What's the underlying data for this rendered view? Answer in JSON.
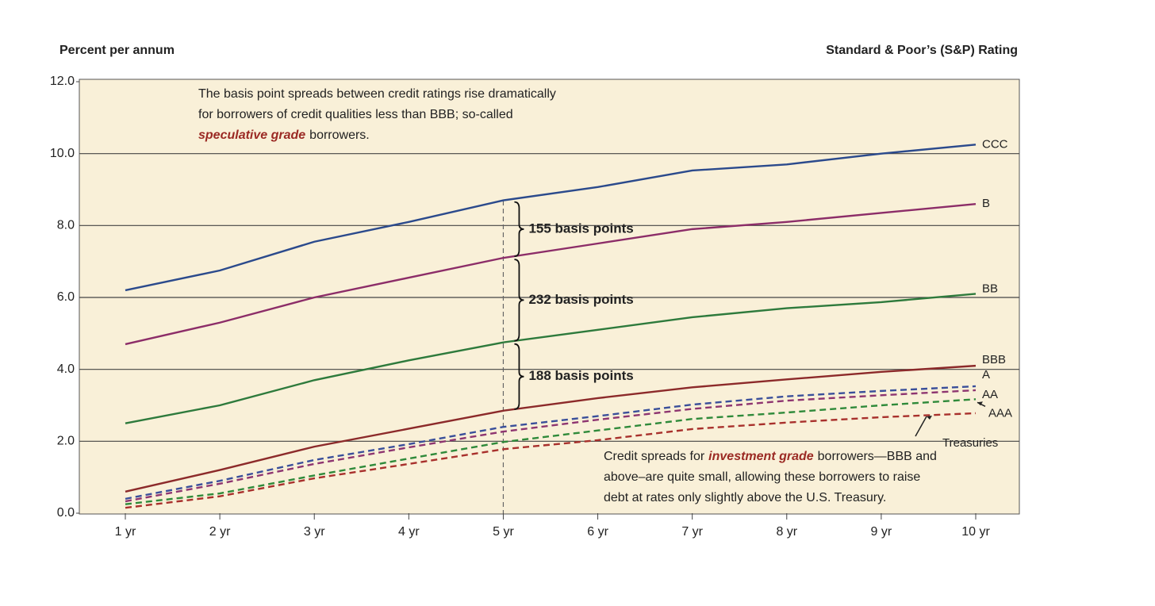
{
  "chart_data": {
    "type": "line",
    "y_label": "Percent per annum",
    "legend_title": "Standard & Poor’s (S&P) Rating",
    "categories": [
      "1 yr",
      "2 yr",
      "3 yr",
      "4 yr",
      "5 yr",
      "6 yr",
      "7 yr",
      "8 yr",
      "9 yr",
      "10 yr"
    ],
    "series": [
      {
        "name": "CCC",
        "color": "#2b4a8c",
        "dashed": false,
        "values": [
          6.2,
          6.75,
          7.55,
          8.1,
          8.7,
          9.07,
          9.53,
          9.7,
          10.0,
          10.25
        ]
      },
      {
        "name": "B",
        "color": "#8c2d68",
        "dashed": false,
        "values": [
          4.7,
          5.3,
          6.0,
          6.55,
          7.1,
          7.5,
          7.9,
          8.1,
          8.35,
          8.6
        ]
      },
      {
        "name": "BB",
        "color": "#2e7a3c",
        "dashed": false,
        "values": [
          2.5,
          3.0,
          3.7,
          4.25,
          4.75,
          5.1,
          5.45,
          5.7,
          5.87,
          6.1
        ]
      },
      {
        "name": "BBB",
        "color": "#8c2a2a",
        "dashed": false,
        "values": [
          0.6,
          1.2,
          1.85,
          2.35,
          2.85,
          3.2,
          3.5,
          3.72,
          3.93,
          4.1
        ]
      },
      {
        "name": "A",
        "color": "#3a4f9a",
        "dashed": true,
        "values": [
          0.4,
          0.9,
          1.48,
          1.92,
          2.4,
          2.7,
          3.02,
          3.25,
          3.4,
          3.53
        ]
      },
      {
        "name": "AA",
        "color": "#8e3570",
        "dashed": true,
        "values": [
          0.33,
          0.82,
          1.37,
          1.83,
          2.27,
          2.6,
          2.9,
          3.13,
          3.28,
          3.42
        ]
      },
      {
        "name": "AAA",
        "color": "#2f8a3a",
        "dashed": true,
        "values": [
          0.25,
          0.55,
          1.05,
          1.52,
          1.98,
          2.3,
          2.62,
          2.8,
          3.0,
          3.17
        ]
      },
      {
        "name": "Treasuries",
        "color": "#a8302c",
        "dashed": true,
        "values": [
          0.15,
          0.47,
          0.97,
          1.37,
          1.78,
          2.03,
          2.34,
          2.52,
          2.67,
          2.78
        ]
      }
    ],
    "ylim": [
      0,
      12
    ],
    "yticks": [
      {
        "value": 0,
        "label": "0.0"
      },
      {
        "value": 2,
        "label": "2.0"
      },
      {
        "value": 4,
        "label": "4.0"
      },
      {
        "value": 6,
        "label": "6.0"
      },
      {
        "value": 8,
        "label": "8.0"
      },
      {
        "value": 10,
        "label": "10.0"
      },
      {
        "value": 12,
        "label": "12.0"
      }
    ],
    "grid": true,
    "spreads": [
      "155 basis points",
      "232 basis points",
      "188 basis points"
    ],
    "note_top": {
      "lines": [
        "The basis point spreads between credit ratings rise dramatically",
        "for borrowers of credit qualities less than BBB; so-called"
      ],
      "emphasis": "speculative grade",
      "tail": "borrowers."
    },
    "note_bottom": {
      "lead": "Credit spreads for",
      "emphasis": "investment grade",
      "tail": "borrowers—BBB and",
      "lines": [
        "above–are quite small, allowing these borrowers to raise",
        "debt at rates only slightly above the U.S. Treasury."
      ]
    }
  }
}
